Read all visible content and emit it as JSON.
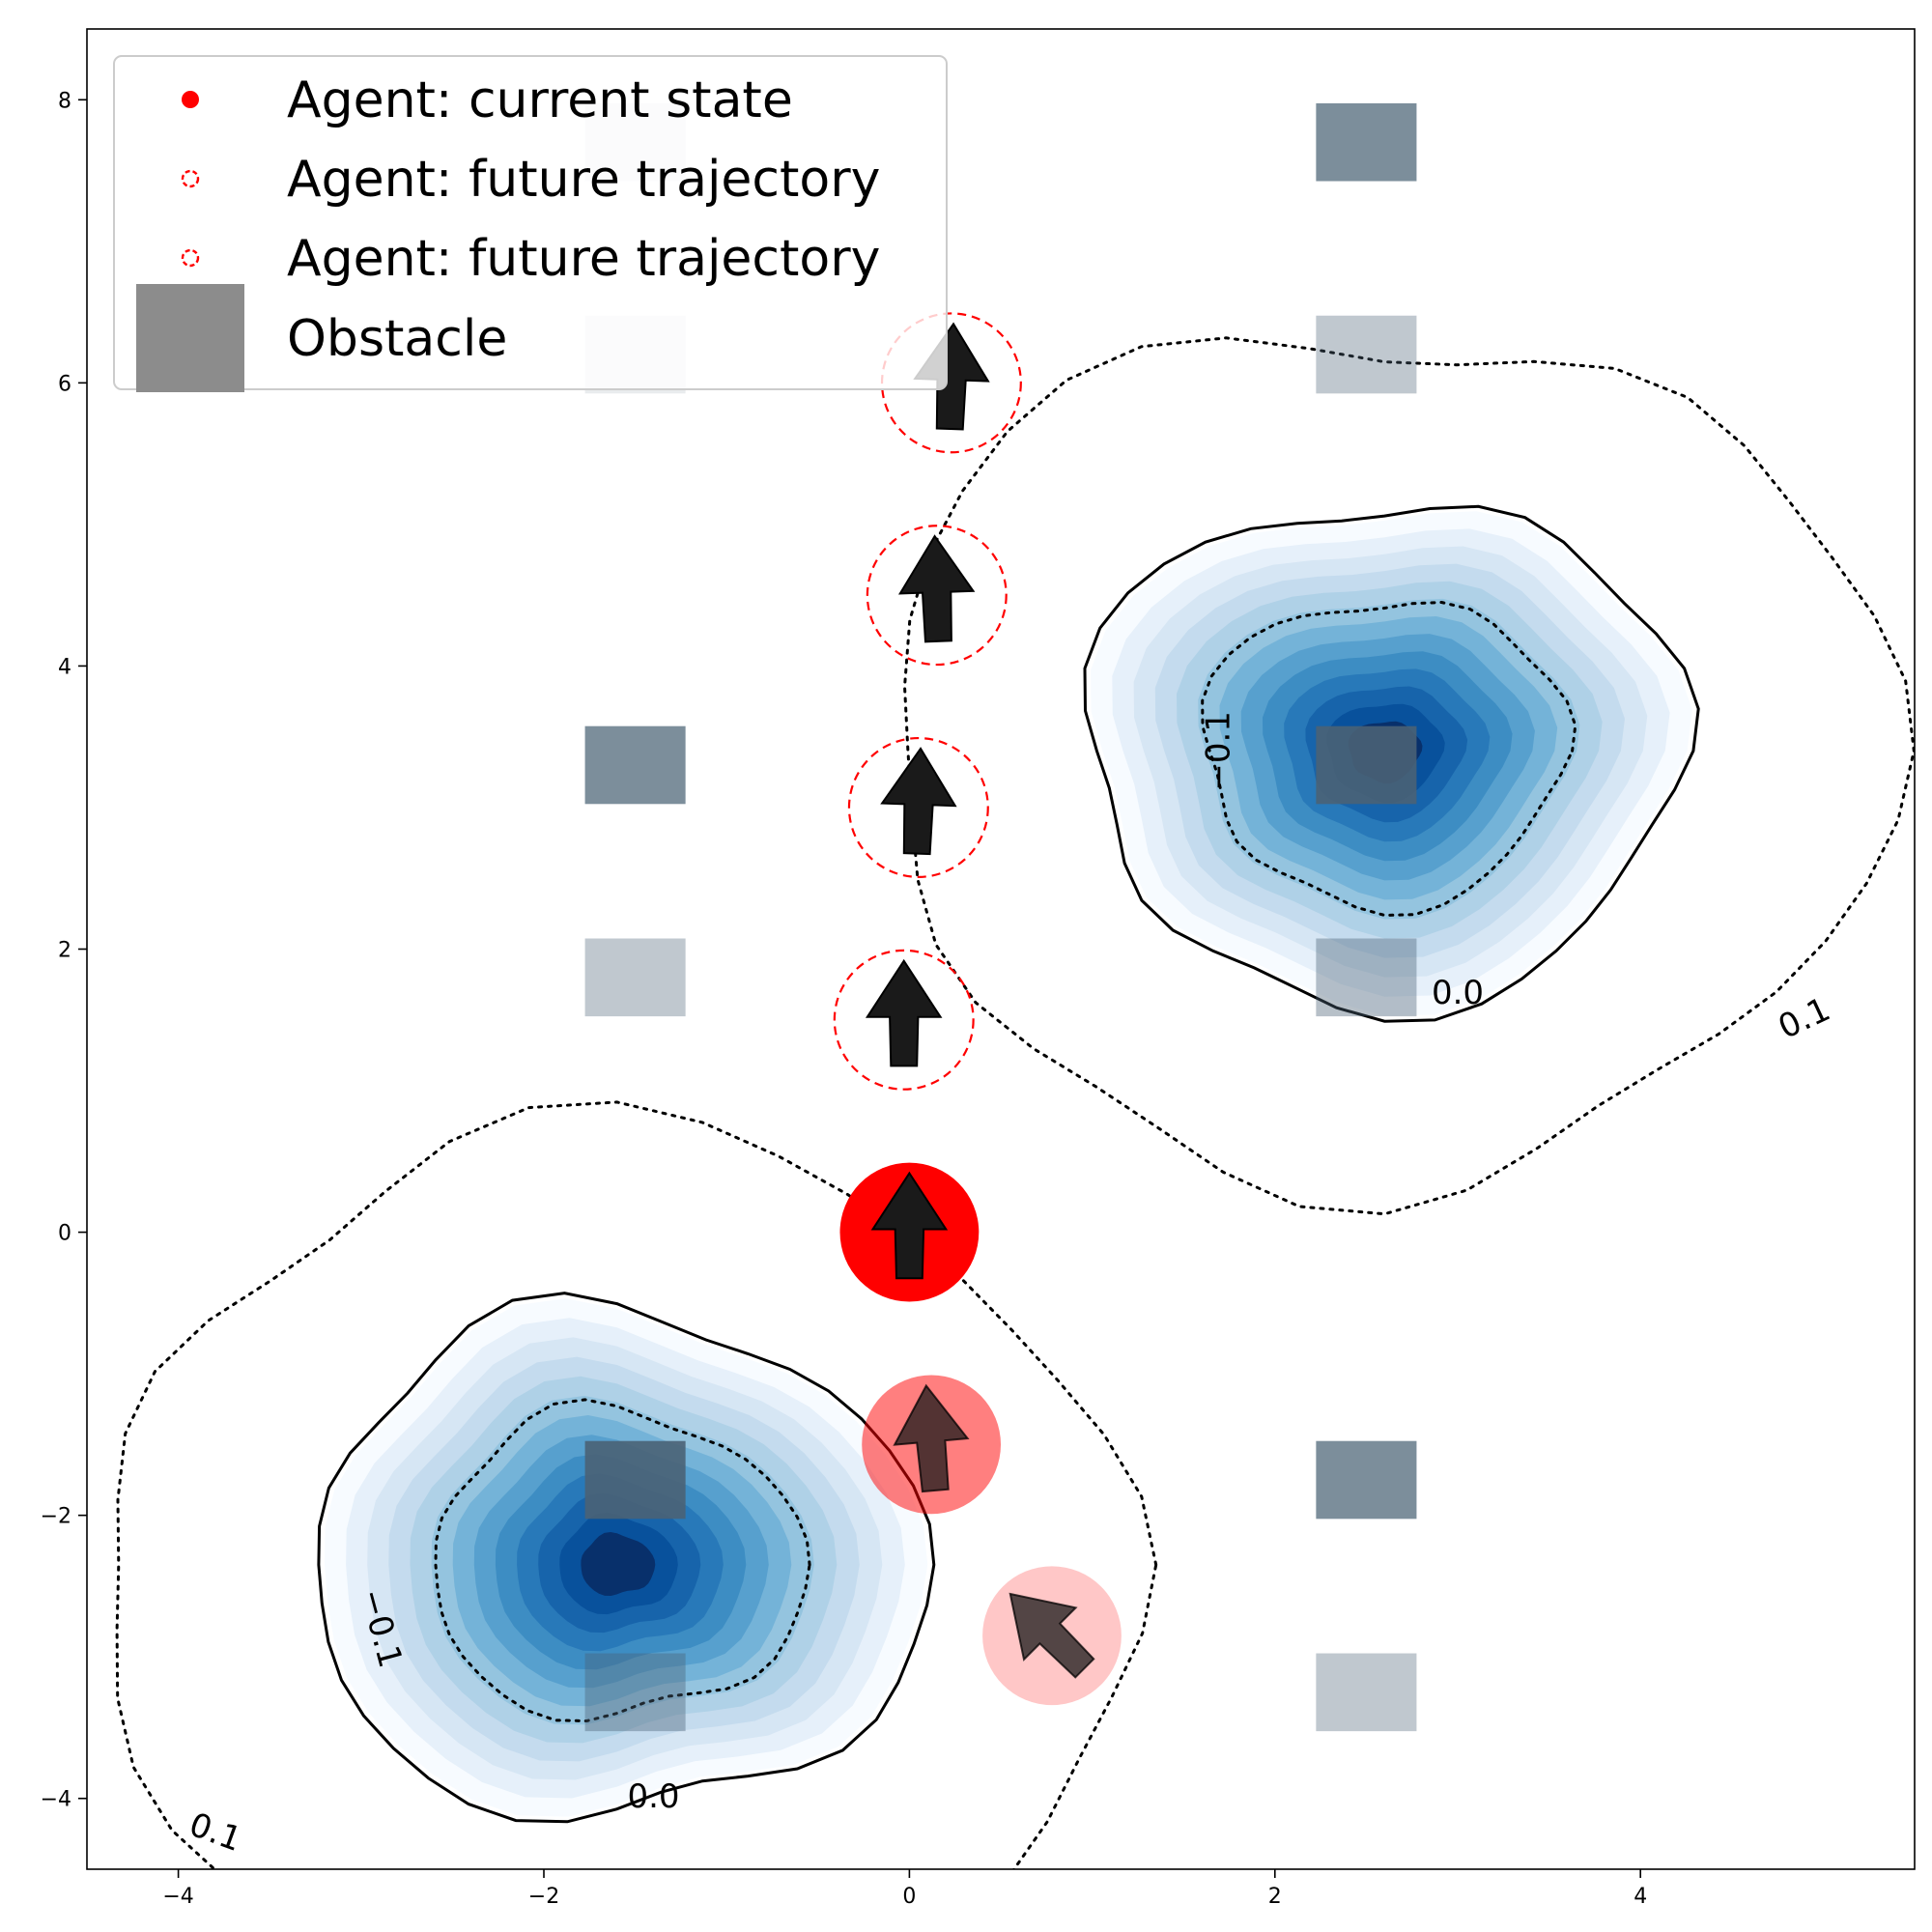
{
  "chart_data": {
    "type": "scatter",
    "title": "",
    "xlabel": "",
    "ylabel": "",
    "xlim": [
      -4.5,
      5.5
    ],
    "ylim": [
      -4.5,
      8.5
    ],
    "xticks": [
      -4,
      -2,
      0,
      2,
      4
    ],
    "yticks": [
      -4,
      -2,
      0,
      2,
      4,
      6,
      8
    ],
    "xtick_labels": [
      "−4",
      "−2",
      "0",
      "2",
      "4"
    ],
    "ytick_labels": [
      "−4",
      "−2",
      "0",
      "2",
      "4",
      "6",
      "8"
    ],
    "grid": false,
    "legend_position": "top-left",
    "legend": [
      {
        "label": "Agent: current state",
        "marker": "filled-circle",
        "color": "#ff0000"
      },
      {
        "label": "Agent: future trajectory",
        "marker": "dashed-circle",
        "color": "#ff0000"
      },
      {
        "label": "Agent: future trajectory",
        "marker": "dashed-circle",
        "color": "#ff0000"
      },
      {
        "label": "Obstacle",
        "marker": "square",
        "color": "#8c8c8c"
      }
    ],
    "density_peaks": [
      {
        "x": 2.6,
        "y": 3.4,
        "spread_x": 1.6,
        "spread_y": 1.75
      },
      {
        "x": -1.6,
        "y": -2.35,
        "spread_x": 1.65,
        "spread_y": 1.75
      }
    ],
    "density_color": "#08306b",
    "contour_levels": [
      {
        "value": -0.1,
        "style": "dotted"
      },
      {
        "value": 0.0,
        "style": "solid"
      },
      {
        "value": 0.1,
        "style": "dotted"
      }
    ],
    "contour_labels": [
      {
        "text": "−0.1",
        "x": 1.7,
        "y": 3.4,
        "rotation": -90
      },
      {
        "text": "0.0",
        "x": 3.0,
        "y": 1.68,
        "rotation": 0
      },
      {
        "text": "0.1",
        "x": 4.9,
        "y": 1.5,
        "rotation": -25
      },
      {
        "text": "−0.1",
        "x": -2.9,
        "y": -2.8,
        "rotation": 75
      },
      {
        "text": "0.0",
        "x": -1.4,
        "y": -4.0,
        "rotation": 0
      },
      {
        "text": "0.1",
        "x": -3.8,
        "y": -4.25,
        "rotation": 20
      }
    ],
    "obstacles": [
      {
        "x": -1.5,
        "y": 7.7,
        "size": 0.55,
        "opacity": 0.12
      },
      {
        "x": -1.5,
        "y": 6.2,
        "size": 0.55,
        "opacity": 0.12
      },
      {
        "x": -1.5,
        "y": 3.3,
        "size": 0.55,
        "opacity": 0.72
      },
      {
        "x": -1.5,
        "y": 1.8,
        "size": 0.55,
        "opacity": 0.35
      },
      {
        "x": -1.5,
        "y": -1.75,
        "size": 0.55,
        "opacity": 0.9
      },
      {
        "x": -1.5,
        "y": -3.25,
        "size": 0.55,
        "opacity": 0.4
      },
      {
        "x": 2.5,
        "y": 7.7,
        "size": 0.55,
        "opacity": 0.72
      },
      {
        "x": 2.5,
        "y": 6.2,
        "size": 0.55,
        "opacity": 0.35
      },
      {
        "x": 2.5,
        "y": 3.3,
        "size": 0.55,
        "opacity": 0.9
      },
      {
        "x": 2.5,
        "y": 1.8,
        "size": 0.55,
        "opacity": 0.4
      },
      {
        "x": 2.5,
        "y": -1.75,
        "size": 0.55,
        "opacity": 0.72
      },
      {
        "x": 2.5,
        "y": -3.25,
        "size": 0.55,
        "opacity": 0.35
      }
    ],
    "obstacle_color": "#4a6275",
    "agent_current": {
      "x": 0.0,
      "y": 0.0,
      "heading": 90,
      "radius": 0.38
    },
    "agent_past": [
      {
        "x": 0.12,
        "y": -1.5,
        "heading": 95,
        "radius": 0.38,
        "opacity": 0.5
      },
      {
        "x": 0.78,
        "y": -2.85,
        "heading": 135,
        "radius": 0.38,
        "opacity": 0.22
      }
    ],
    "agent_future": [
      {
        "x": -0.03,
        "y": 1.5,
        "heading": 90,
        "radius": 0.38
      },
      {
        "x": 0.05,
        "y": 3.0,
        "heading": 88,
        "radius": 0.38
      },
      {
        "x": 0.15,
        "y": 4.5,
        "heading": 92,
        "radius": 0.38
      },
      {
        "x": 0.23,
        "y": 6.0,
        "heading": 88,
        "radius": 0.38
      }
    ],
    "agent_color": "#ff0000"
  }
}
